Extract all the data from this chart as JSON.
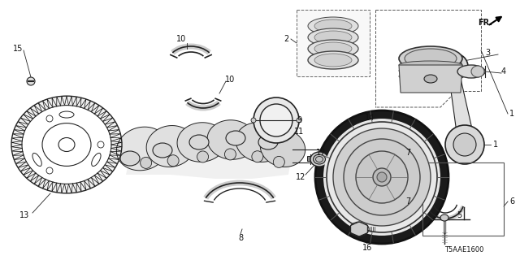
{
  "bg_color": "#ffffff",
  "diagram_code": "T5AAE1600",
  "lc": "#222222",
  "lw": 0.8
}
